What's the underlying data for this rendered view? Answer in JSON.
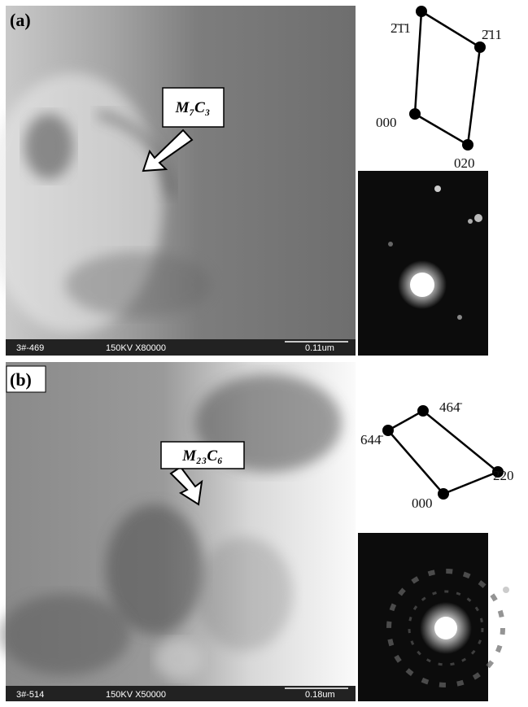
{
  "panels": [
    {
      "label": "(a)",
      "phase": "M₇C₃",
      "info": {
        "id": "3#-469",
        "settings": "150KV X80000",
        "scale": "0.11um"
      },
      "spots": [
        "2̄1̄1",
        "2̄11",
        "000",
        "020"
      ]
    },
    {
      "label": "(b)",
      "phase": "M₂₃C₆",
      "info": {
        "id": "3#-514",
        "settings": "150KV X50000",
        "scale": "0.18um"
      },
      "spots": [
        "464̄",
        "644̄",
        "2̄20",
        "000"
      ]
    }
  ]
}
